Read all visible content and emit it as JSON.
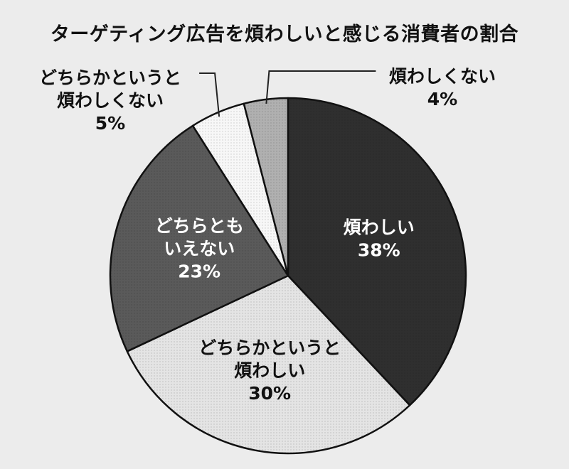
{
  "chart_data": {
    "type": "pie",
    "title": "ターゲティング広告を煩わしいと感じる消費者の割合",
    "start_angle_deg": 0,
    "direction": "clockwise",
    "unit": "%",
    "slices": [
      {
        "label_lines": [
          "煩わしい"
        ],
        "value": 38,
        "value_label": "38%",
        "color": "#2f2f2f",
        "label_color": "#ffffff",
        "label_position": "inside"
      },
      {
        "label_lines": [
          "どちらかというと",
          "煩わしい"
        ],
        "value": 30,
        "value_label": "30%",
        "color": "#e4e4e4",
        "label_color": "#111111",
        "label_position": "inside"
      },
      {
        "label_lines": [
          "どちらとも",
          "いえない"
        ],
        "value": 23,
        "value_label": "23%",
        "color": "#5a5a5a",
        "label_color": "#ffffff",
        "label_position": "inside"
      },
      {
        "label_lines": [
          "どちらかというと",
          "煩わしくない"
        ],
        "value": 5,
        "value_label": "5%",
        "color": "#f7f7f7",
        "label_color": "#111111",
        "label_position": "outside-left"
      },
      {
        "label_lines": [
          "煩わしくない"
        ],
        "value": 4,
        "value_label": "4%",
        "color": "#b0b0b0",
        "label_color": "#111111",
        "label_position": "outside-right"
      }
    ]
  }
}
